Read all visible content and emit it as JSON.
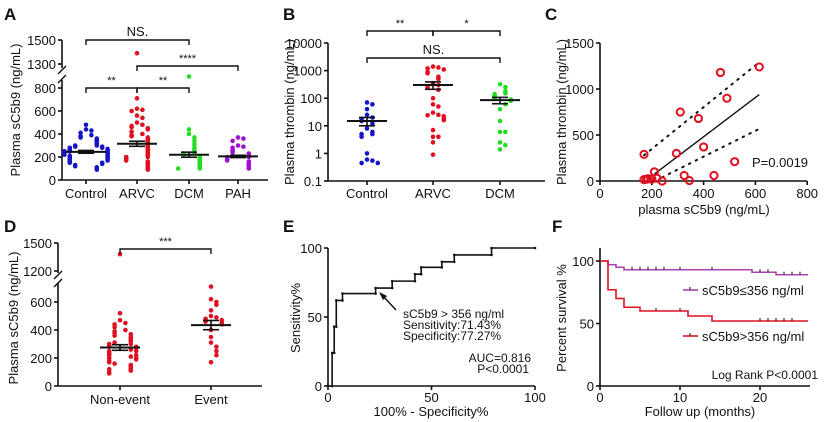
{
  "colors": {
    "control": "#1414c8",
    "arvc": "#e01020",
    "dcm": "#22dd22",
    "pah": "#a010d0",
    "low_group": "#b040b0",
    "high_group": "#e01020",
    "axis": "#111111"
  },
  "chart_data": [
    {
      "panel": "A",
      "type": "scatter",
      "ylabel": "Plasma sC5b9 (ng/mL)",
      "yticks": [
        "0",
        "200",
        "400",
        "600",
        "800",
        "1300",
        "1500"
      ],
      "y_axis_break": [
        800,
        1300
      ],
      "categories": [
        "Control",
        "ARVC",
        "DCM",
        "PAH"
      ],
      "series": [
        {
          "values": [
            480,
            440,
            430,
            410,
            390,
            380,
            370,
            360,
            350,
            340,
            330,
            320,
            310,
            300,
            300,
            290,
            290,
            280,
            280,
            270,
            270,
            260,
            260,
            250,
            250,
            250,
            240,
            240,
            230,
            230,
            220,
            220,
            210,
            210,
            200,
            200,
            190,
            190,
            180,
            180,
            170,
            170,
            160,
            150,
            150,
            140,
            130,
            120,
            110,
            100,
            90
          ],
          "mean": 245,
          "sem": 12
        },
        {
          "values": [
            1390,
            710,
            620,
            610,
            600,
            560,
            540,
            500,
            480,
            470,
            460,
            450,
            440,
            420,
            400,
            390,
            380,
            370,
            360,
            350,
            340,
            330,
            320,
            310,
            300,
            290,
            280,
            270,
            260,
            250,
            240,
            230,
            220,
            210,
            200,
            200,
            190,
            180,
            170,
            160,
            150,
            140,
            130,
            120,
            110,
            100,
            90
          ],
          "mean": 315,
          "sem": 22
        },
        {
          "values": [
            900,
            440,
            400,
            370,
            340,
            310,
            280,
            260,
            240,
            230,
            220,
            210,
            200,
            190,
            180,
            170,
            160,
            150,
            140,
            130,
            120,
            110,
            100,
            100
          ],
          "mean": 220,
          "sem": 22
        },
        {
          "values": [
            370,
            360,
            340,
            300,
            290,
            280,
            260,
            250,
            240,
            230,
            220,
            210,
            200,
            200,
            190,
            180,
            170,
            160,
            150,
            140,
            130,
            120,
            110,
            100
          ],
          "mean": 205,
          "sem": 10
        }
      ],
      "comparisons": [
        {
          "groups": [
            "Control",
            "DCM"
          ],
          "label": "NS."
        },
        {
          "groups": [
            "ARVC",
            "PAH"
          ],
          "label": "****"
        },
        {
          "groups": [
            "Control",
            "ARVC"
          ],
          "label": "**"
        },
        {
          "groups": [
            "ARVC",
            "DCM"
          ],
          "label": "**"
        }
      ]
    },
    {
      "panel": "B",
      "type": "scatter",
      "yscale": "log",
      "ylabel": "Plasma thrombin (ng/mL)",
      "yticks": [
        "0.1",
        "1",
        "10",
        "100",
        "1000",
        "10000"
      ],
      "categories": [
        "Control",
        "ARVC",
        "DCM"
      ],
      "series": [
        {
          "values": [
            70,
            60,
            40,
            25,
            20,
            18,
            15,
            12,
            8,
            6,
            5,
            5,
            4,
            1,
            0.6,
            0.55,
            0.45,
            0.45
          ],
          "mean": 15,
          "sem": 5
        },
        {
          "values": [
            1400,
            1300,
            1200,
            1100,
            900,
            800,
            600,
            500,
            350,
            300,
            250,
            200,
            100,
            60,
            50,
            30,
            25,
            24,
            22,
            18,
            17,
            16,
            7,
            4,
            4,
            2.5,
            0.9
          ],
          "mean": 300,
          "sem": 90
        },
        {
          "values": [
            320,
            250,
            180,
            150,
            140,
            120,
            100,
            95,
            90,
            80,
            60,
            40,
            15,
            6,
            6,
            2.5,
            2,
            1.4
          ],
          "mean": 85,
          "sem": 22
        }
      ],
      "comparisons": [
        {
          "groups": [
            "Control",
            "ARVC"
          ],
          "label": "**"
        },
        {
          "groups": [
            "ARVC",
            "DCM"
          ],
          "label": "*"
        },
        {
          "groups": [
            "Control",
            "DCM"
          ],
          "label": "NS."
        }
      ]
    },
    {
      "panel": "C",
      "type": "scatter",
      "xlabel": "plasma sC5b9 (ng/mL)",
      "ylabel": "Plasma thrombin (ng/mL)",
      "xlim": [
        0,
        800
      ],
      "ylim": [
        0,
        1500
      ],
      "xticks": [
        "0",
        "200",
        "400",
        "600",
        "800"
      ],
      "yticks": [
        "0",
        "500",
        "1000",
        "1500"
      ],
      "points": [
        [
          170,
          290
        ],
        [
          170,
          15
        ],
        [
          180,
          20
        ],
        [
          185,
          25
        ],
        [
          200,
          20
        ],
        [
          210,
          100
        ],
        [
          220,
          30
        ],
        [
          240,
          0
        ],
        [
          295,
          300
        ],
        [
          310,
          750
        ],
        [
          325,
          60
        ],
        [
          345,
          5
        ],
        [
          380,
          680
        ],
        [
          400,
          370
        ],
        [
          440,
          60
        ],
        [
          465,
          1180
        ],
        [
          490,
          900
        ],
        [
          520,
          210
        ],
        [
          615,
          1240
        ]
      ],
      "fit": [
        [
          210,
          75
        ],
        [
          615,
          940
        ]
      ],
      "ci_upper": [
        [
          170,
          280
        ],
        [
          610,
          1280
        ]
      ],
      "ci_lower": [
        [
          240,
          40
        ],
        [
          610,
          560
        ]
      ],
      "annotation": "P=0.0019"
    },
    {
      "panel": "D",
      "type": "scatter",
      "ylabel": "Plasma sC5b9 (ng/mL)",
      "yticks": [
        "0",
        "200",
        "400",
        "600",
        "1200",
        "1500"
      ],
      "y_axis_break": [
        700,
        1200
      ],
      "categories": [
        "Non-event",
        "Event"
      ],
      "series": [
        {
          "values": [
            1380,
            520,
            470,
            450,
            440,
            420,
            400,
            390,
            380,
            370,
            360,
            350,
            340,
            330,
            320,
            310,
            300,
            300,
            290,
            280,
            280,
            270,
            260,
            250,
            250,
            240,
            230,
            220,
            220,
            210,
            200,
            200,
            190,
            180,
            170,
            160,
            150,
            140,
            130,
            120,
            120,
            110,
            100,
            90
          ],
          "mean": 275,
          "sem": 20
        },
        {
          "values": [
            710,
            620,
            600,
            580,
            540,
            500,
            490,
            480,
            470,
            460,
            450,
            440,
            400,
            350,
            310,
            280,
            250,
            220,
            170
          ],
          "mean": 435,
          "sem": 33
        }
      ],
      "comparisons": [
        {
          "groups": [
            "Non-event",
            "Event"
          ],
          "label": "***"
        }
      ]
    },
    {
      "panel": "E",
      "type": "line",
      "xlabel": "100% - Specificity%",
      "ylabel": "Sensitivity%",
      "xlim": [
        0,
        100
      ],
      "ylim": [
        0,
        100
      ],
      "xticks": [
        "0",
        "50",
        "100"
      ],
      "yticks": [
        "0",
        "50",
        "100"
      ],
      "roc": [
        [
          0,
          0
        ],
        [
          2,
          0
        ],
        [
          2,
          24
        ],
        [
          3,
          24
        ],
        [
          3,
          43
        ],
        [
          4,
          43
        ],
        [
          4,
          62
        ],
        [
          7,
          62
        ],
        [
          7,
          67
        ],
        [
          23,
          67
        ],
        [
          23,
          71
        ],
        [
          31,
          71
        ],
        [
          31,
          76
        ],
        [
          42,
          76
        ],
        [
          42,
          81
        ],
        [
          45,
          81
        ],
        [
          45,
          86
        ],
        [
          55,
          86
        ],
        [
          55,
          90
        ],
        [
          61,
          90
        ],
        [
          61,
          95
        ],
        [
          79,
          95
        ],
        [
          79,
          100
        ],
        [
          100,
          100
        ]
      ],
      "annotation_lines": [
        "sC5b9 > 356 ng/ml",
        "Sensitivity:71.43%",
        "Specificity:77.27%"
      ],
      "auc": "AUC=0.816",
      "p": "P<0.0001"
    },
    {
      "panel": "F",
      "type": "line",
      "xlabel": "Follow up (months)",
      "ylabel": "Percent survival %",
      "xlim": [
        0,
        26
      ],
      "ylim": [
        0,
        100
      ],
      "xticks": [
        "0",
        "10",
        "20"
      ],
      "yticks": [
        "0",
        "50",
        "100"
      ],
      "series": [
        {
          "name": "sC5b9≤356 ng/ml",
          "steps": [
            [
              0,
              100
            ],
            [
              1,
              97
            ],
            [
              2,
              95
            ],
            [
              3,
              93
            ],
            [
              19,
              91
            ],
            [
              22,
              89
            ],
            [
              26,
              89
            ]
          ],
          "censored": [
            4,
            5,
            6,
            7,
            8,
            10,
            14,
            20,
            21,
            23,
            24,
            25
          ]
        },
        {
          "name": "sC5b9>356 ng/ml",
          "steps": [
            [
              0,
              100
            ],
            [
              1,
              77
            ],
            [
              2,
              70
            ],
            [
              3,
              63
            ],
            [
              5,
              60
            ],
            [
              11,
              56
            ],
            [
              14,
              52
            ],
            [
              26,
              52
            ]
          ],
          "censored": [
            7,
            10,
            20,
            21,
            22,
            23,
            24
          ]
        }
      ],
      "annotation": "Log Rank P<0.0001"
    }
  ]
}
